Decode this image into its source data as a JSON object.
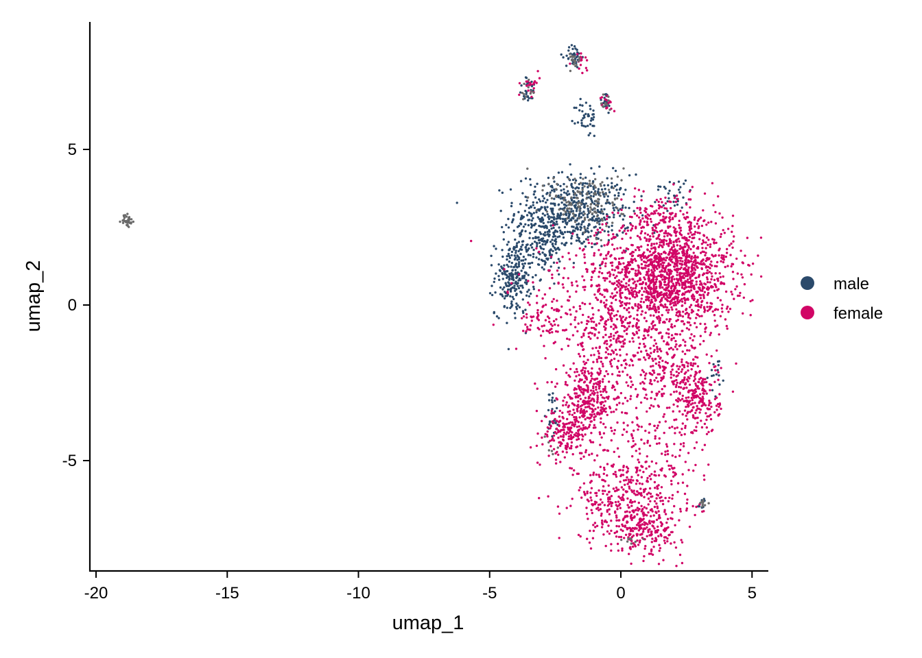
{
  "chart_data": {
    "type": "scatter",
    "title": "",
    "xlabel": "umap_1",
    "ylabel": "umap_2",
    "xlim": [
      -20.2,
      5.7
    ],
    "ylim": [
      -8.5,
      9.0
    ],
    "x_ticks": [
      -20,
      -15,
      -10,
      -5,
      0,
      5
    ],
    "y_ticks": [
      -5,
      0,
      5
    ],
    "x_tick_labels": [
      "-20",
      "-15",
      "-10",
      "-5",
      "0",
      "5"
    ],
    "y_tick_labels": [
      "-5",
      "0",
      "5"
    ],
    "grid": false,
    "legend_position": "right",
    "legend": [
      {
        "label": "male",
        "color": "#2b4a6b"
      },
      {
        "label": "female",
        "color": "#d10566"
      }
    ],
    "na_color": "#6b6b6b",
    "series": [
      {
        "name": "male",
        "color": "#2b4a6b",
        "clusters": [
          {
            "cx": -1.8,
            "cy": 3.0,
            "sx": 1.1,
            "sy": 0.6,
            "n": 560
          },
          {
            "cx": -4.1,
            "cy": 0.9,
            "sx": 0.35,
            "sy": 0.6,
            "n": 230
          },
          {
            "cx": -3.0,
            "cy": 2.0,
            "sx": 0.5,
            "sy": 0.5,
            "n": 150
          },
          {
            "cx": -1.8,
            "cy": 8.0,
            "sx": 0.15,
            "sy": 0.2,
            "n": 40
          },
          {
            "cx": -1.3,
            "cy": 6.0,
            "sx": 0.2,
            "sy": 0.3,
            "n": 40
          },
          {
            "cx": -0.6,
            "cy": 6.5,
            "sx": 0.12,
            "sy": 0.2,
            "n": 20
          },
          {
            "cx": -3.5,
            "cy": 6.9,
            "sx": 0.2,
            "sy": 0.2,
            "n": 25
          },
          {
            "cx": -2.6,
            "cy": -3.5,
            "sx": 0.12,
            "sy": 0.4,
            "n": 30
          },
          {
            "cx": 3.7,
            "cy": -2.3,
            "sx": 0.15,
            "sy": 0.3,
            "n": 15
          },
          {
            "cx": 3.1,
            "cy": -6.4,
            "sx": 0.1,
            "sy": 0.1,
            "n": 10
          },
          {
            "cx": 2.0,
            "cy": 3.6,
            "sx": 0.4,
            "sy": 0.3,
            "n": 30
          }
        ]
      },
      {
        "name": "female",
        "color": "#d10566",
        "clusters": [
          {
            "cx": 1.9,
            "cy": 1.0,
            "sx": 1.2,
            "sy": 1.0,
            "n": 1500
          },
          {
            "cx": -0.6,
            "cy": 0.4,
            "sx": 1.7,
            "sy": 1.0,
            "n": 300
          },
          {
            "cx": -1.3,
            "cy": -3.1,
            "sx": 0.45,
            "sy": 0.5,
            "n": 200
          },
          {
            "cx": -2.1,
            "cy": -4.2,
            "sx": 0.4,
            "sy": 0.4,
            "n": 150
          },
          {
            "cx": -0.5,
            "cy": -3.0,
            "sx": 1.1,
            "sy": 1.3,
            "n": 280
          },
          {
            "cx": 2.9,
            "cy": -3.0,
            "sx": 0.45,
            "sy": 0.6,
            "n": 230
          },
          {
            "cx": 1.6,
            "cy": -2.2,
            "sx": 0.6,
            "sy": 0.6,
            "n": 150
          },
          {
            "cx": 0.0,
            "cy": -6.3,
            "sx": 0.9,
            "sy": 0.6,
            "n": 280
          },
          {
            "cx": 1.0,
            "cy": -7.2,
            "sx": 0.7,
            "sy": 0.4,
            "n": 200
          },
          {
            "cx": -3.0,
            "cy": -0.5,
            "sx": 0.5,
            "sy": 0.3,
            "n": 60
          },
          {
            "cx": -0.5,
            "cy": -1.0,
            "sx": 0.6,
            "sy": 0.7,
            "n": 120
          },
          {
            "cx": 1.5,
            "cy": -5.0,
            "sx": 0.8,
            "sy": 0.8,
            "n": 120
          },
          {
            "cx": -3.5,
            "cy": 7.0,
            "sx": 0.2,
            "sy": 0.2,
            "n": 20
          },
          {
            "cx": -1.5,
            "cy": 7.8,
            "sx": 0.15,
            "sy": 0.2,
            "n": 15
          },
          {
            "cx": -0.5,
            "cy": 6.5,
            "sx": 0.15,
            "sy": 0.2,
            "n": 15
          },
          {
            "cx": 2.6,
            "cy": -6.6,
            "sx": 0.3,
            "sy": 0.2,
            "n": 12
          },
          {
            "cx": 1.6,
            "cy": 3.0,
            "sx": 0.5,
            "sy": 0.3,
            "n": 60
          }
        ]
      },
      {
        "name": "",
        "color": "#6b6b6b",
        "clusters": [
          {
            "cx": -1.3,
            "cy": 3.3,
            "sx": 0.7,
            "sy": 0.5,
            "n": 130
          },
          {
            "cx": -18.8,
            "cy": 2.7,
            "sx": 0.1,
            "sy": 0.1,
            "n": 35
          },
          {
            "cx": -1.8,
            "cy": 7.9,
            "sx": 0.15,
            "sy": 0.2,
            "n": 18
          },
          {
            "cx": -0.6,
            "cy": 6.5,
            "sx": 0.1,
            "sy": 0.15,
            "n": 12
          },
          {
            "cx": -3.5,
            "cy": 6.9,
            "sx": 0.15,
            "sy": 0.15,
            "n": 10
          },
          {
            "cx": 3.1,
            "cy": -6.4,
            "sx": 0.1,
            "sy": 0.1,
            "n": 8
          },
          {
            "cx": -2.6,
            "cy": -4.4,
            "sx": 0.12,
            "sy": 0.2,
            "n": 6
          },
          {
            "cx": 0.4,
            "cy": -7.6,
            "sx": 0.3,
            "sy": 0.1,
            "n": 8
          }
        ]
      }
    ]
  }
}
